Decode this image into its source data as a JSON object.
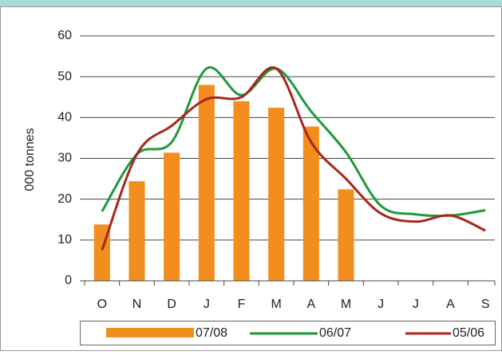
{
  "chart_data": {
    "type": "bar_line",
    "y_label": "000 tonnes",
    "categories": [
      "O",
      "N",
      "D",
      "J",
      "F",
      "M",
      "A",
      "M",
      "J",
      "J",
      "A",
      "S"
    ],
    "series": [
      {
        "name": "07/08",
        "type": "bar",
        "color": "#f28e1e",
        "values": [
          13.8,
          24.4,
          31.4,
          48,
          44,
          42.4,
          37.8,
          22.4,
          null,
          null,
          null,
          null
        ]
      },
      {
        "name": "06/07",
        "type": "line",
        "color": "#1e9a3c",
        "values": [
          17,
          31,
          34,
          52,
          45.5,
          52,
          41.5,
          31.5,
          18.4,
          16.3,
          16,
          17.3
        ]
      },
      {
        "name": "05/06",
        "type": "line",
        "color": "#a8261e",
        "values": [
          7.5,
          31,
          38,
          44.5,
          45,
          52,
          34,
          25,
          16.5,
          14.5,
          16,
          12.3
        ]
      }
    ],
    "ylim": [
      0,
      60
    ],
    "yticks": [
      0,
      10,
      20,
      30,
      40,
      50,
      60
    ],
    "grid": true,
    "legend": "bottom"
  }
}
